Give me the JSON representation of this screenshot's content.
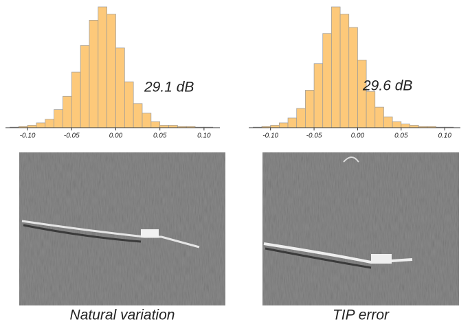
{
  "chart_data": [
    {
      "type": "histogram",
      "color": "#fdc97a",
      "annotation": "29.1 dB",
      "caption": "Natural variation",
      "bins": [
        -0.12,
        -0.11,
        -0.1,
        -0.09,
        -0.08,
        -0.07,
        -0.06,
        -0.05,
        -0.04,
        -0.03,
        -0.02,
        -0.01,
        0,
        0.01,
        0.02,
        0.03,
        0.04,
        0.05,
        0.06,
        0.07,
        0.08,
        0.09,
        0.1,
        0.11
      ],
      "values": [
        0.5,
        1,
        2,
        4,
        7,
        15,
        26,
        46,
        68,
        89,
        100,
        94,
        66,
        38,
        20,
        12,
        5,
        2,
        2,
        1,
        1,
        0.5,
        0.5
      ],
      "xlim": [
        -0.125,
        0.118
      ],
      "xticks": [
        {
          "value": -0.1,
          "label": "-0.10"
        },
        {
          "value": -0.05,
          "label": "-0.05"
        },
        {
          "value": 0,
          "label": "0.00"
        },
        {
          "value": 0.05,
          "label": "0.05"
        },
        {
          "value": 0.1,
          "label": "0.10"
        }
      ]
    },
    {
      "type": "histogram",
      "color": "#fdc97a",
      "annotation": "29.6 dB",
      "caption": "TIP error",
      "bins": [
        -0.12,
        -0.11,
        -0.1,
        -0.09,
        -0.08,
        -0.07,
        -0.06,
        -0.05,
        -0.04,
        -0.03,
        -0.02,
        -0.01,
        0,
        0.01,
        0.02,
        0.03,
        0.04,
        0.05,
        0.06,
        0.07,
        0.08,
        0.09,
        0.1,
        0.11
      ],
      "values": [
        0.5,
        1,
        2,
        4,
        8,
        16,
        31,
        53,
        78,
        100,
        94,
        83,
        56,
        30,
        17,
        9,
        5,
        3,
        2,
        1,
        1,
        0.5,
        0.5
      ],
      "xlim": [
        -0.125,
        0.118
      ],
      "xticks": [
        {
          "value": -0.1,
          "label": "-0.10"
        },
        {
          "value": -0.05,
          "label": "-0.05"
        },
        {
          "value": 0,
          "label": "0.00"
        },
        {
          "value": 0.05,
          "label": "0.05"
        },
        {
          "value": 0.1,
          "label": "0.10"
        }
      ]
    }
  ]
}
